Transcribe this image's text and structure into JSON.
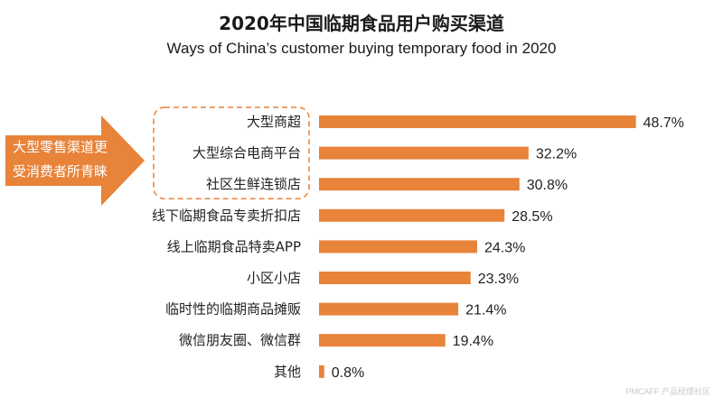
{
  "title": "2020年中国临期食品用户购买渠道",
  "subtitle": "Ways of China’s customer buying temporary food in 2020",
  "annotation": {
    "lines": [
      "大型零售渠道更",
      "受消费者所青睐"
    ],
    "color": "#E8833A"
  },
  "watermark": "PMCAFF 产品经理社区",
  "chart_data": {
    "type": "bar",
    "orientation": "horizontal",
    "categories": [
      "大型商超",
      "大型综合电商平台",
      "社区生鲜连锁店",
      "线下临期食品专卖折扣店",
      "线上临期食品特卖APP",
      "小区小店",
      "临时性的临期商品摊贩",
      "微信朋友圈、微信群",
      "其他"
    ],
    "values": [
      48.7,
      32.2,
      30.8,
      28.5,
      24.3,
      23.3,
      21.4,
      19.4,
      0.8
    ],
    "value_labels": [
      "48.7%",
      "32.2%",
      "30.8%",
      "28.5%",
      "24.3%",
      "23.3%",
      "21.4%",
      "19.4%",
      "0.8%"
    ],
    "unit": "%",
    "highlighted_categories": [
      0,
      1,
      2
    ],
    "bar_color": "#E8833A",
    "grid": false,
    "legend": "none"
  }
}
